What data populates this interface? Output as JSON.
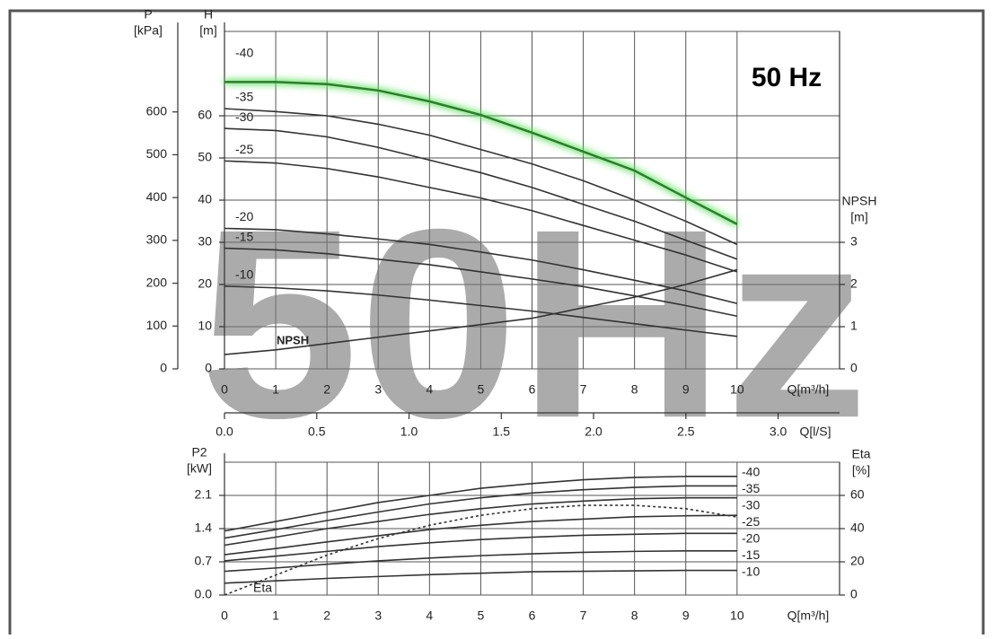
{
  "chart_data": [
    {
      "type": "line",
      "title": "50 Hz",
      "watermark": "50Hz",
      "x": [
        0,
        1,
        2,
        3,
        4,
        5,
        6,
        7,
        8,
        9,
        10
      ],
      "xlim": [
        0,
        12
      ],
      "xticks": [
        0,
        1,
        2,
        3,
        4,
        5,
        6,
        7,
        8,
        9,
        10
      ],
      "xlabel": "Q[m³/h]",
      "x2lim": [
        0,
        3.333
      ],
      "x2ticks": [
        {
          "value": 0,
          "label": "0.0"
        },
        0.5,
        {
          "value": 1,
          "label": "1.0"
        },
        1.5,
        {
          "value": 2,
          "label": "2.0"
        },
        2.5,
        {
          "value": 3,
          "label": "3.0"
        }
      ],
      "x2label": "Q[l/S]",
      "ylim": [
        0,
        80
      ],
      "yticks": [
        0,
        10,
        20,
        30,
        40,
        50,
        60
      ],
      "ylabel": [
        "H",
        "[m]"
      ],
      "plim": [
        0,
        788
      ],
      "pticks": [
        0,
        100,
        200,
        300,
        400,
        500,
        600
      ],
      "plabel": [
        "P",
        "[kPa]"
      ],
      "y2lim": [
        0,
        8
      ],
      "y2ticks": [
        0,
        1,
        2,
        3
      ],
      "y2label": [
        "NPSH",
        "[m]"
      ],
      "grid": true,
      "series": [
        {
          "name": "-40",
          "color": "#2e7d2e",
          "glow": "#5fe05f",
          "values": [
            68,
            68,
            67.5,
            66,
            63.4,
            60.2,
            56,
            51.5,
            47,
            40.6,
            34.3
          ]
        },
        {
          "name": "-35",
          "color": "#333333",
          "values": [
            61.7,
            61,
            60,
            58,
            55.4,
            52,
            48.6,
            44.6,
            40,
            35,
            29.5
          ]
        },
        {
          "name": "-30",
          "color": "#333333",
          "values": [
            57,
            56.5,
            55,
            52.5,
            49.5,
            46.5,
            43,
            39,
            35,
            30.5,
            26
          ]
        },
        {
          "name": "-25",
          "color": "#333333",
          "values": [
            49.3,
            48.8,
            47.5,
            45.5,
            43,
            40.5,
            37.5,
            34,
            30.5,
            27,
            23
          ]
        },
        {
          "name": "-20",
          "color": "#333333",
          "values": [
            33.3,
            33,
            32,
            30.8,
            29.5,
            27.7,
            25.8,
            23.5,
            21,
            18.5,
            15.5
          ]
        },
        {
          "name": "-15",
          "color": "#333333",
          "values": [
            28.6,
            28.2,
            27.3,
            26,
            24.7,
            23,
            21.3,
            19.5,
            17.3,
            15,
            12.5
          ]
        },
        {
          "name": "-10",
          "color": "#333333",
          "values": [
            19.6,
            19.2,
            18.5,
            17.5,
            16.3,
            15,
            13.7,
            12.2,
            10.7,
            9.2,
            7.7
          ]
        },
        {
          "name": "NPSH",
          "color": "#333333",
          "axis": "y2",
          "values": [
            0.34,
            0.45,
            0.6,
            0.75,
            0.9,
            1.05,
            1.2,
            1.45,
            1.7,
            2.0,
            2.35
          ]
        }
      ]
    },
    {
      "type": "line",
      "x": [
        0,
        1,
        2,
        3,
        4,
        5,
        6,
        7,
        8,
        9,
        10
      ],
      "xlim": [
        0,
        12
      ],
      "xticks": [
        0,
        1,
        2,
        3,
        4,
        5,
        6,
        7,
        8,
        9,
        10
      ],
      "xlabel": "Q[m³/h]",
      "ylim": [
        0,
        2.8
      ],
      "yticks": [
        {
          "value": 0,
          "label": "0.0"
        },
        0.7,
        1.4,
        2.1
      ],
      "ylabel": [
        "P2",
        "[kW]"
      ],
      "y2lim": [
        0,
        80
      ],
      "y2ticks": [
        0,
        20,
        40,
        60
      ],
      "y2label": [
        "Eta",
        "[%]"
      ],
      "grid": true,
      "series": [
        {
          "name": "-40",
          "color": "#333333",
          "values": [
            1.35,
            1.55,
            1.75,
            1.95,
            2.1,
            2.25,
            2.35,
            2.43,
            2.48,
            2.5,
            2.5
          ]
        },
        {
          "name": "-35",
          "color": "#333333",
          "values": [
            1.2,
            1.38,
            1.57,
            1.75,
            1.92,
            2.05,
            2.15,
            2.22,
            2.27,
            2.3,
            2.3
          ]
        },
        {
          "name": "-30",
          "color": "#333333",
          "values": [
            1.05,
            1.22,
            1.4,
            1.55,
            1.7,
            1.82,
            1.92,
            1.98,
            2.03,
            2.05,
            2.05
          ]
        },
        {
          "name": "-25",
          "color": "#333333",
          "values": [
            0.85,
            0.98,
            1.12,
            1.25,
            1.38,
            1.47,
            1.55,
            1.6,
            1.65,
            1.67,
            1.68
          ]
        },
        {
          "name": "-20",
          "color": "#333333",
          "values": [
            0.72,
            0.82,
            0.92,
            1.02,
            1.1,
            1.17,
            1.22,
            1.26,
            1.28,
            1.3,
            1.3
          ]
        },
        {
          "name": "-15",
          "color": "#333333",
          "values": [
            0.5,
            0.57,
            0.65,
            0.72,
            0.78,
            0.83,
            0.87,
            0.9,
            0.92,
            0.93,
            0.93
          ]
        },
        {
          "name": "-10",
          "color": "#333333",
          "values": [
            0.25,
            0.3,
            0.35,
            0.39,
            0.43,
            0.46,
            0.49,
            0.5,
            0.51,
            0.52,
            0.52
          ]
        },
        {
          "name": "Eta",
          "color": "#333333",
          "axis": "y2",
          "dashed": true,
          "values": [
            0,
            12,
            24,
            34,
            42,
            48,
            52,
            54,
            54,
            52,
            47
          ]
        }
      ]
    }
  ]
}
